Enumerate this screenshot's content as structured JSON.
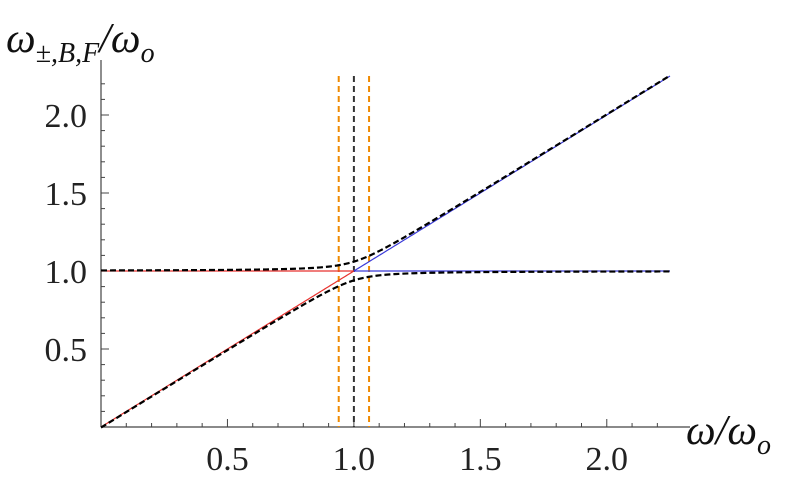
{
  "chart_data": {
    "type": "line",
    "ylabel_parts": {
      "main": "ω",
      "sub": "±,B,F",
      "slash": "/",
      "den": "ω",
      "den_sub": "o"
    },
    "xlabel_parts": {
      "main": "ω",
      "slash": "/",
      "den": "ω",
      "den_sub": "o"
    },
    "xlim": [
      0,
      2.25
    ],
    "ylim": [
      0,
      2.25
    ],
    "x_ticks": [
      0.5,
      1.0,
      1.5,
      2.0
    ],
    "y_ticks": [
      0.5,
      1.0,
      1.5,
      2.0
    ],
    "x_tick_labels": [
      "0.5",
      "1.0",
      "1.5",
      "2.0"
    ],
    "y_tick_labels": [
      "0.5",
      "1.0",
      "1.5",
      "2.0"
    ],
    "grid": false,
    "coupling_g": 0.06,
    "series": [
      {
        "role": "upper-branch",
        "color": "#000000",
        "style": "dashed",
        "x_range": [
          0,
          2.25
        ]
      },
      {
        "role": "lower-branch",
        "color": "#000000",
        "style": "dashed",
        "x_range": [
          0,
          2.25
        ]
      },
      {
        "role": "diagonal-red",
        "color": "#e8322e",
        "style": "solid",
        "x_range": [
          0,
          1.0
        ]
      },
      {
        "role": "horizontal-red",
        "color": "#e8322e",
        "style": "solid",
        "x_range": [
          0,
          1.0
        ]
      },
      {
        "role": "diagonal-blue",
        "color": "#3a3ad8",
        "style": "solid",
        "x_range": [
          1.0,
          2.25
        ]
      },
      {
        "role": "horizontal-blue",
        "color": "#3a3ad8",
        "style": "solid",
        "x_range": [
          1.0,
          2.25
        ]
      }
    ],
    "vertical_lines": [
      {
        "x": 0.94,
        "color": "#f08a00",
        "style": "dashed"
      },
      {
        "x": 1.0,
        "color": "#333333",
        "style": "dashed"
      },
      {
        "x": 1.06,
        "color": "#f08a00",
        "style": "dashed"
      }
    ]
  }
}
